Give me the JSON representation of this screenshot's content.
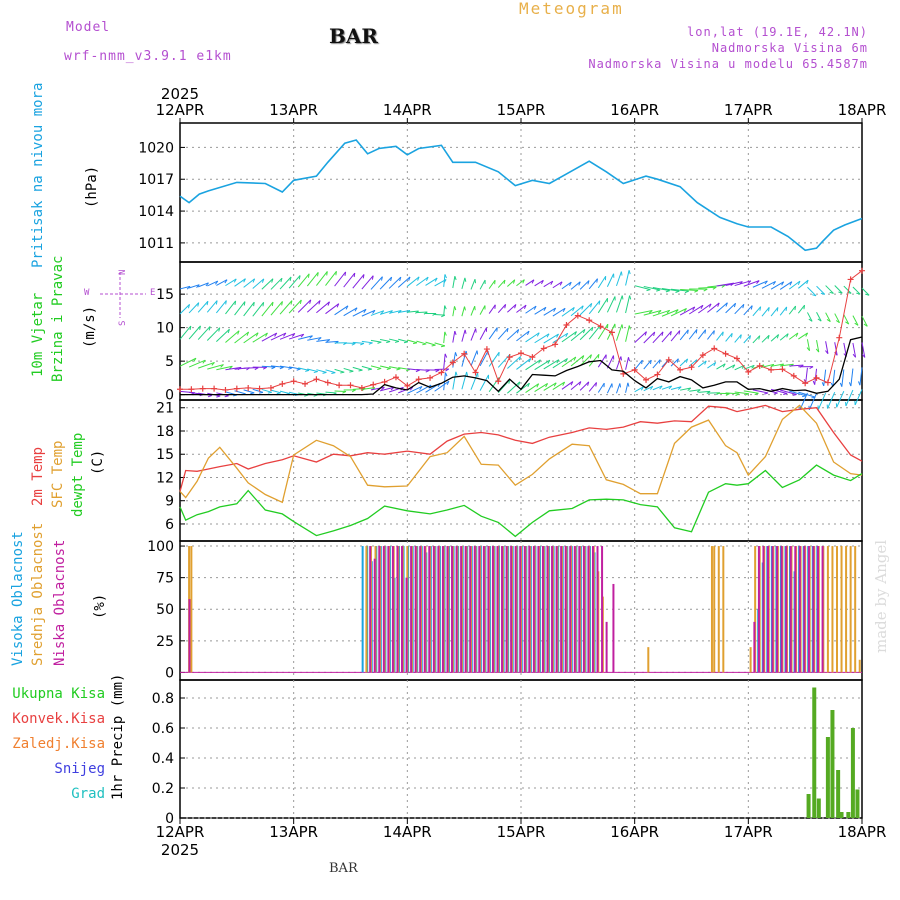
{
  "header": {
    "model_label": "Model",
    "model_name": "wrf-nmm_v3.9.1 e1km",
    "title": "Meteogram",
    "station": "BAR",
    "coords": "lon,lat (19.1E, 42.1N)",
    "elevation": "Nadmorska Visina 6m",
    "model_elevation": "Nadmorska Visina u modelu 65.4587m"
  },
  "footer": {
    "station": "BAR",
    "credit": "made by Angel"
  },
  "x_axis": {
    "year": "2025",
    "ticks": [
      "12APR",
      "13APR",
      "14APR",
      "15APR",
      "16APR",
      "17APR",
      "18APR"
    ],
    "range_days": [
      12,
      18
    ]
  },
  "colors": {
    "pressure": "#1aa3e0",
    "wind_speed": "#000000",
    "wind_gust": "#e84040",
    "t2m": "#e84040",
    "tsfc": "#e0a030",
    "dewpt": "#22cc22",
    "cloud_high": "#1aa3e0",
    "cloud_mid": "#e0a030",
    "cloud_low": "#c020a0",
    "precip_total": "#22cc22",
    "precip_conv": "#e84040",
    "precip_frz": "#f08030",
    "snow": "#4040e0",
    "graupel": "#20c0c0",
    "purple_text": "#b44fd0"
  },
  "panels": {
    "pressure": {
      "label": "Pritisak na nivou mora",
      "unit": "(hPa)"
    },
    "wind": {
      "label1": "10m Vjetar",
      "label2": "Brzina i Pravac",
      "unit": "(m/s)",
      "compass": {
        "n": "N",
        "s": "S",
        "e": "E",
        "w": "W"
      }
    },
    "temp": {
      "label_t2m": "2m Temp",
      "label_tsfc": "SFC Temp",
      "label_dew": "dewpt Temp",
      "unit": "(C)"
    },
    "cloud": {
      "label_high": "Visoka Oblacnost",
      "label_mid": "Srednja Oblacnost",
      "label_low": "Niska Oblacnost",
      "unit": "(%)"
    },
    "precip": {
      "legend": [
        "Ukupna Kisa",
        "Konvek.Kisa",
        "Zaledj.Kisa",
        "Snijeg",
        "Grad"
      ],
      "ylabel": "1hr Precip (mm)"
    }
  },
  "chart_data": [
    {
      "type": "line",
      "id": "pressure",
      "yticks": [
        1011,
        1014,
        1017,
        1020
      ],
      "ylim": [
        1009.2,
        1022.3
      ],
      "x": [
        12.0,
        12.08,
        12.17,
        12.25,
        12.5,
        12.75,
        12.9,
        13.0,
        13.2,
        13.3,
        13.45,
        13.55,
        13.65,
        13.75,
        13.9,
        14.0,
        14.1,
        14.3,
        14.4,
        14.5,
        14.6,
        14.8,
        14.95,
        15.1,
        15.25,
        15.4,
        15.6,
        15.75,
        15.9,
        16.1,
        16.2,
        16.4,
        16.55,
        16.75,
        16.9,
        17.0,
        17.2,
        17.35,
        17.5,
        17.6,
        17.65,
        17.75,
        17.85,
        18.0
      ],
      "y": [
        1015.4,
        1014.8,
        1015.6,
        1015.9,
        1016.7,
        1016.6,
        1015.8,
        1016.9,
        1017.3,
        1018.6,
        1020.4,
        1020.7,
        1019.4,
        1019.9,
        1020.1,
        1019.3,
        1019.9,
        1020.2,
        1018.6,
        1018.6,
        1018.6,
        1017.7,
        1016.4,
        1016.9,
        1016.6,
        1017.5,
        1018.7,
        1017.7,
        1016.6,
        1017.3,
        1017.0,
        1016.3,
        1014.8,
        1013.4,
        1012.8,
        1012.5,
        1012.5,
        1011.6,
        1010.3,
        1010.5,
        1011.1,
        1012.2,
        1012.7,
        1013.3
      ]
    },
    {
      "type": "line",
      "id": "wind",
      "yticks": [
        0,
        5,
        10,
        15
      ],
      "ylim": [
        -0.8,
        19.8
      ],
      "x": [
        12.0,
        12.1,
        12.2,
        12.3,
        12.4,
        12.5,
        12.6,
        12.7,
        12.8,
        12.9,
        13.0,
        13.1,
        13.2,
        13.3,
        13.4,
        13.5,
        13.6,
        13.7,
        13.8,
        13.9,
        14.0,
        14.1,
        14.2,
        14.3,
        14.4,
        14.5,
        14.6,
        14.7,
        14.8,
        14.9,
        15.0,
        15.1,
        15.2,
        15.3,
        15.4,
        15.5,
        15.6,
        15.7,
        15.8,
        15.9,
        16.0,
        16.1,
        16.2,
        16.3,
        16.4,
        16.5,
        16.6,
        16.7,
        16.8,
        16.9,
        17.0,
        17.1,
        17.2,
        17.3,
        17.4,
        17.5,
        17.6,
        17.7,
        17.8,
        17.9,
        18.0
      ],
      "series": [
        {
          "name": "speed",
          "values": [
            0,
            0,
            0,
            0,
            0,
            0,
            0,
            0,
            0,
            0,
            0,
            0,
            0,
            0,
            0,
            0,
            0,
            0.1,
            1.5,
            1.0,
            0.7,
            1.8,
            1.1,
            1.7,
            2.6,
            2.8,
            2.5,
            2.1,
            0.5,
            2.3,
            0.8,
            3.0,
            2.9,
            2.8,
            3.6,
            4.2,
            4.9,
            5.1,
            3.7,
            3.5,
            2.1,
            1.0,
            2.4,
            1.9,
            2.7,
            2.2,
            1.0,
            1.4,
            1.9,
            1.9,
            0.8,
            0.9,
            0.5,
            0.9,
            0.6,
            0.7,
            0.2,
            0.5,
            2.3,
            8.2,
            8.6
          ]
        },
        {
          "name": "gust",
          "values": [
            0.8,
            0.8,
            0.9,
            0.9,
            0.7,
            0.9,
            1.0,
            0.9,
            1.0,
            1.6,
            2.0,
            1.6,
            2.3,
            1.8,
            1.4,
            1.4,
            1.0,
            1.5,
            1.9,
            2.6,
            1.3,
            2.3,
            2.5,
            3.3,
            4.8,
            6.1,
            3.3,
            6.8,
            2.0,
            5.6,
            6.2,
            5.6,
            6.9,
            7.5,
            10.4,
            11.8,
            11.1,
            10.2,
            9.3,
            3.1,
            3.7,
            2.2,
            3.0,
            5.2,
            3.7,
            4.1,
            5.9,
            6.9,
            6.1,
            5.4,
            3.4,
            4.3,
            3.7,
            3.8,
            2.8,
            1.7,
            2.5,
            1.8,
            8.5,
            17.2,
            18.5
          ]
        }
      ]
    },
    {
      "type": "line",
      "id": "temperature",
      "yticks": [
        6,
        9,
        12,
        15,
        18,
        21
      ],
      "ylim": [
        3.8,
        22.0
      ],
      "x": [
        12.0,
        12.05,
        12.15,
        12.25,
        12.35,
        12.5,
        12.6,
        12.75,
        12.9,
        13.0,
        13.2,
        13.35,
        13.5,
        13.65,
        13.8,
        14.0,
        14.2,
        14.35,
        14.5,
        14.65,
        14.8,
        14.95,
        15.1,
        15.25,
        15.45,
        15.6,
        15.75,
        15.9,
        16.05,
        16.2,
        16.35,
        16.5,
        16.65,
        16.8,
        16.9,
        17.0,
        17.15,
        17.3,
        17.45,
        17.6,
        17.75,
        17.9,
        18.0
      ],
      "series": [
        {
          "name": "t2m",
          "values": [
            10.2,
            12.9,
            12.8,
            13.1,
            13.4,
            13.8,
            13.1,
            13.8,
            14.3,
            14.8,
            14.0,
            15.0,
            14.8,
            15.2,
            15.0,
            15.4,
            15.0,
            16.7,
            17.6,
            17.8,
            17.5,
            16.8,
            16.4,
            17.2,
            17.8,
            18.4,
            18.2,
            18.5,
            19.2,
            19.0,
            19.3,
            19.2,
            21.2,
            21.0,
            20.5,
            20.8,
            21.3,
            20.5,
            20.8,
            21.0,
            17.8,
            14.9,
            14.1
          ]
        },
        {
          "name": "tsfc",
          "values": [
            10.2,
            9.4,
            11.5,
            14.5,
            15.9,
            13.2,
            11.3,
            9.8,
            8.8,
            14.9,
            16.8,
            16.1,
            14.7,
            11.0,
            10.8,
            10.9,
            14.7,
            15.2,
            17.3,
            13.7,
            13.6,
            11.0,
            12.4,
            14.4,
            16.3,
            16.1,
            11.7,
            11.1,
            9.9,
            9.9,
            16.4,
            18.5,
            19.4,
            16.1,
            15.2,
            12.3,
            14.7,
            19.5,
            21.3,
            19.0,
            14.0,
            12.5,
            12.3
          ]
        },
        {
          "name": "dewpt",
          "values": [
            8.2,
            6.5,
            7.2,
            7.6,
            8.2,
            8.6,
            10.3,
            7.8,
            7.3,
            6.3,
            4.5,
            5.1,
            5.8,
            6.7,
            8.3,
            7.7,
            7.3,
            7.8,
            8.4,
            7.0,
            6.2,
            4.4,
            6.2,
            7.7,
            8.0,
            9.1,
            9.2,
            9.1,
            8.5,
            8.2,
            5.5,
            5.0,
            10.1,
            11.2,
            11.0,
            11.2,
            12.9,
            10.7,
            11.7,
            13.6,
            12.3,
            11.6,
            12.5
          ]
        }
      ]
    },
    {
      "type": "bar",
      "id": "cloud",
      "yticks": [
        0,
        25,
        50,
        75,
        100
      ],
      "ylim": [
        -6,
        104
      ],
      "series": [
        {
          "name": "cloud_high",
          "x": [
            13.62,
            13.66,
            13.7,
            13.74,
            13.78,
            13.82,
            13.86,
            13.9,
            13.94,
            13.98,
            14.02,
            14.06,
            14.1,
            14.14,
            14.18,
            14.22,
            14.26,
            14.3,
            14.34,
            14.38,
            14.42,
            14.46,
            14.5,
            14.54,
            14.58,
            14.62,
            14.66,
            14.7,
            14.74,
            14.78,
            14.82,
            14.86,
            14.9,
            14.94,
            14.98,
            15.02,
            15.06,
            15.1,
            15.14,
            15.18,
            15.22,
            15.26,
            15.3,
            15.34,
            15.38,
            15.42,
            15.46,
            15.5,
            15.54,
            15.58,
            15.62,
            15.66,
            17.1,
            17.14,
            17.18,
            17.22,
            17.26,
            17.3,
            17.34,
            17.38,
            17.42,
            17.46,
            17.5,
            17.54,
            17.58,
            17.62
          ],
          "values": [
            100,
            100,
            88,
            100,
            100,
            100,
            100,
            75,
            100,
            100,
            100,
            100,
            100,
            100,
            95,
            100,
            100,
            100,
            100,
            100,
            100,
            100,
            100,
            100,
            100,
            100,
            100,
            100,
            100,
            100,
            100,
            100,
            100,
            100,
            100,
            100,
            100,
            100,
            100,
            100,
            100,
            100,
            100,
            100,
            100,
            100,
            100,
            100,
            100,
            100,
            100,
            95,
            50,
            87,
            100,
            100,
            100,
            100,
            100,
            100,
            80,
            100,
            100,
            100,
            100,
            100
          ]
        },
        {
          "name": "cloud_mid",
          "x": [
            12.08,
            12.1,
            13.64,
            13.68,
            13.72,
            13.76,
            13.8,
            13.84,
            13.88,
            13.92,
            13.96,
            14.0,
            14.04,
            14.08,
            14.12,
            14.16,
            14.2,
            14.24,
            14.28,
            14.32,
            14.36,
            14.4,
            14.44,
            14.48,
            14.52,
            14.56,
            14.6,
            14.64,
            14.68,
            14.72,
            14.76,
            14.8,
            14.84,
            14.88,
            14.92,
            14.96,
            15.0,
            15.04,
            15.08,
            15.12,
            15.16,
            15.2,
            15.24,
            15.28,
            15.32,
            15.36,
            15.4,
            15.44,
            15.48,
            15.52,
            15.56,
            15.6,
            15.64,
            15.68,
            15.72,
            16.12,
            16.68,
            16.7,
            16.74,
            16.78,
            17.02,
            17.06,
            17.1,
            17.14,
            17.18,
            17.22,
            17.26,
            17.3,
            17.34,
            17.38,
            17.42,
            17.46,
            17.5,
            17.54,
            17.58,
            17.62,
            17.66,
            17.7,
            17.74,
            17.78,
            17.82,
            17.86,
            17.9,
            17.94,
            17.98
          ],
          "values": [
            100,
            100,
            100,
            100,
            100,
            100,
            100,
            100,
            100,
            100,
            100,
            100,
            100,
            100,
            100,
            100,
            100,
            100,
            100,
            100,
            100,
            100,
            100,
            100,
            100,
            100,
            100,
            100,
            100,
            100,
            100,
            100,
            100,
            100,
            100,
            100,
            100,
            100,
            100,
            100,
            100,
            100,
            100,
            100,
            100,
            100,
            100,
            100,
            100,
            100,
            100,
            100,
            100,
            80,
            60,
            20,
            100,
            100,
            100,
            100,
            20,
            100,
            100,
            100,
            100,
            100,
            100,
            100,
            100,
            100,
            100,
            100,
            100,
            100,
            100,
            100,
            100,
            100,
            100,
            100,
            100,
            100,
            100,
            100,
            10
          ]
        },
        {
          "name": "cloud_low",
          "x": [
            12.07,
            13.66,
            13.7,
            13.74,
            13.78,
            13.82,
            13.86,
            13.9,
            13.94,
            13.98,
            14.02,
            14.06,
            14.1,
            14.14,
            14.18,
            14.22,
            14.26,
            14.3,
            14.34,
            14.38,
            14.42,
            14.46,
            14.5,
            14.54,
            14.58,
            14.62,
            14.66,
            14.7,
            14.74,
            14.78,
            14.82,
            14.86,
            14.9,
            14.94,
            14.98,
            15.02,
            15.06,
            15.1,
            15.14,
            15.18,
            15.22,
            15.26,
            15.3,
            15.34,
            15.38,
            15.42,
            15.46,
            15.5,
            15.54,
            15.58,
            15.62,
            15.66,
            15.7,
            15.74,
            15.8,
            17.04,
            17.08,
            17.12,
            17.16,
            17.2,
            17.24,
            17.28,
            17.32,
            17.36,
            17.4,
            17.44,
            17.48,
            17.52,
            17.56,
            17.6,
            17.64
          ],
          "values": [
            58,
            100,
            90,
            100,
            100,
            100,
            100,
            100,
            100,
            75,
            100,
            100,
            100,
            100,
            100,
            100,
            100,
            100,
            100,
            100,
            100,
            100,
            100,
            100,
            100,
            100,
            100,
            100,
            100,
            100,
            100,
            100,
            100,
            100,
            100,
            100,
            100,
            100,
            100,
            100,
            100,
            100,
            100,
            100,
            100,
            100,
            100,
            100,
            100,
            100,
            100,
            100,
            100,
            40,
            70,
            40,
            100,
            100,
            100,
            100,
            100,
            100,
            100,
            100,
            100,
            100,
            100,
            100,
            100,
            100,
            100
          ]
        }
      ]
    },
    {
      "type": "bar",
      "id": "precip",
      "yticks": [
        0,
        0.2,
        0.4,
        0.6,
        0.8
      ],
      "ylim": [
        0,
        0.92
      ],
      "series": [
        {
          "name": "total",
          "x": [
            17.53,
            17.58,
            17.62,
            17.7,
            17.74,
            17.79,
            17.82,
            17.88,
            17.92,
            17.96
          ],
          "values": [
            0.16,
            0.87,
            0.13,
            0.54,
            0.72,
            0.32,
            0.04,
            0.04,
            0.6,
            0.19
          ]
        }
      ]
    }
  ]
}
